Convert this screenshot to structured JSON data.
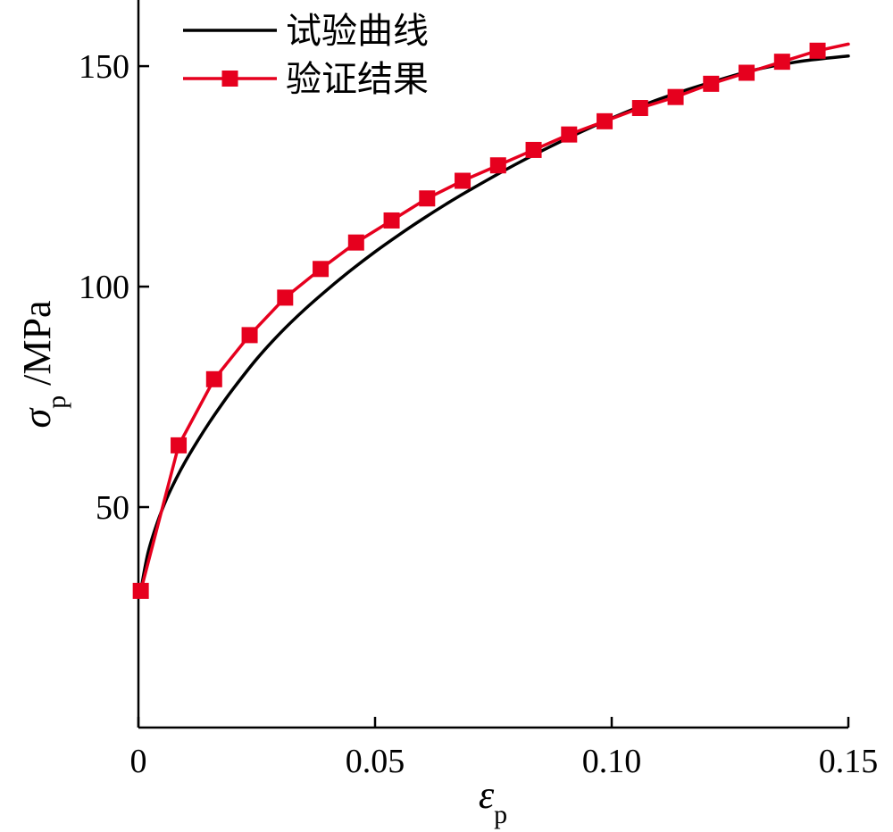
{
  "chart_data": {
    "type": "line",
    "xlabel": "εp",
    "ylabel": "σp /MPa",
    "xlim": [
      0,
      0.15
    ],
    "ylim": [
      0,
      165
    ],
    "xticks": [
      0,
      0.05,
      0.1,
      0.15
    ],
    "xtick_labels": [
      "0",
      "0.05",
      "0.10",
      "0.15"
    ],
    "yticks": [
      50,
      100,
      150
    ],
    "ytick_labels": [
      "50",
      "100",
      "150"
    ],
    "legend_position": "top-left",
    "series": [
      {
        "name": "试验曲线",
        "color": "#000000",
        "marker": "none",
        "x": [
          0.0005,
          0.002,
          0.004,
          0.006,
          0.008,
          0.01,
          0.0125,
          0.015,
          0.0175,
          0.02,
          0.025,
          0.03,
          0.035,
          0.04,
          0.045,
          0.05,
          0.055,
          0.06,
          0.065,
          0.07,
          0.08,
          0.09,
          0.1,
          0.11,
          0.12,
          0.13,
          0.14,
          0.15
        ],
        "y": [
          31,
          39.5,
          46.5,
          52,
          56.5,
          60.5,
          65,
          69.2,
          73.1,
          76.8,
          83.6,
          89.5,
          94.7,
          99.4,
          103.8,
          107.9,
          111.7,
          115.3,
          118.7,
          121.9,
          127.9,
          133.3,
          138.2,
          142.5,
          146.0,
          149.1,
          151.1,
          152.3
        ]
      },
      {
        "name": "验证结果",
        "color": "#e6001e",
        "marker": "square",
        "x": [
          0.0005,
          0.0085,
          0.016,
          0.0235,
          0.031,
          0.0385,
          0.046,
          0.0535,
          0.061,
          0.0685,
          0.076,
          0.0835,
          0.091,
          0.0985,
          0.106,
          0.1135,
          0.121,
          0.1285,
          0.136,
          0.1435
        ],
        "y": [
          31,
          64,
          79,
          89,
          97.5,
          104,
          110,
          115,
          120,
          124,
          127.5,
          131,
          134.5,
          137.5,
          140.5,
          143,
          146,
          148.5,
          151,
          153.5
        ],
        "line_end": {
          "x": 0.15,
          "y": 155
        }
      }
    ]
  }
}
